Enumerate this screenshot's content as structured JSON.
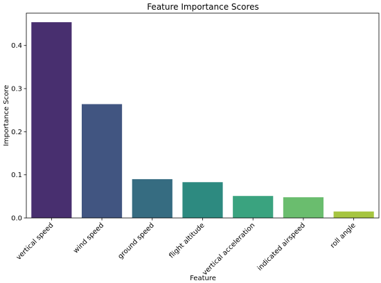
{
  "chart_data": {
    "type": "bar",
    "title": "Feature Importance Scores",
    "xlabel": "Feature",
    "ylabel": "Importance Score",
    "categories": [
      "vertical speed",
      "wind speed",
      "ground speed",
      "flight altitude",
      "vertical acceleration",
      "indicated airspeed",
      "roll angle"
    ],
    "values": [
      0.454,
      0.264,
      0.09,
      0.083,
      0.051,
      0.048,
      0.015
    ],
    "colors": [
      "#482f6f",
      "#415581",
      "#366c81",
      "#2d8a80",
      "#3aa37f",
      "#6abd6e",
      "#a6c540"
    ],
    "ylim": [
      0,
      0.475
    ],
    "yticks": [
      0.0,
      0.1,
      0.2,
      0.3,
      0.4
    ],
    "ytick_labels": [
      "0.0",
      "0.1",
      "0.2",
      "0.3",
      "0.4"
    ],
    "grid": false,
    "legend": "none"
  }
}
